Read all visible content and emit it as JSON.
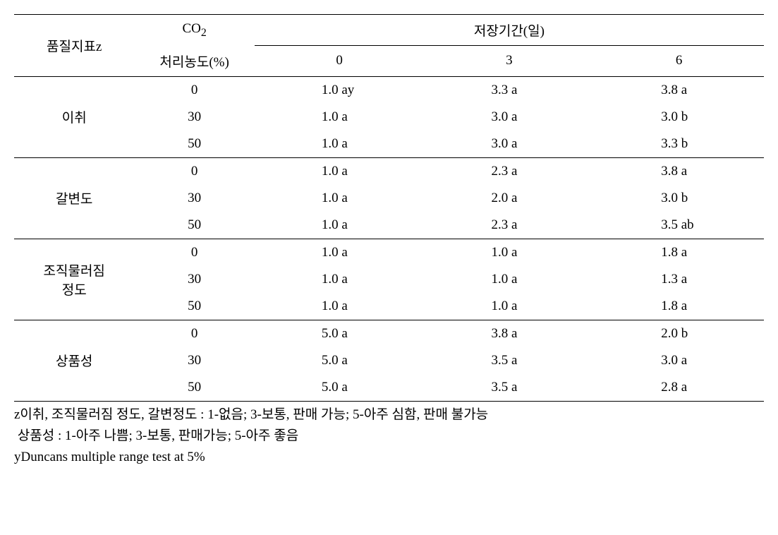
{
  "table": {
    "headers": {
      "quality_indicator": "품질지표z",
      "co2_line1": "CO",
      "co2_sub": "2",
      "co2_line2": "처리농도(%)",
      "storage_period": "저장기간(일)",
      "day0": "0",
      "day3": "3",
      "day6": "6"
    },
    "groups": [
      {
        "label": "이취",
        "rows": [
          {
            "co2": "0",
            "d0": "1.0 ay",
            "d3": "3.3 a",
            "d6": "3.8 a"
          },
          {
            "co2": "30",
            "d0": "1.0 a",
            "d3": "3.0 a",
            "d6": "3.0 b"
          },
          {
            "co2": "50",
            "d0": "1.0 a",
            "d3": "3.0 a",
            "d6": "3.3 b"
          }
        ]
      },
      {
        "label": "갈변도",
        "rows": [
          {
            "co2": "0",
            "d0": "1.0 a",
            "d3": "2.3 a",
            "d6": "3.8 a"
          },
          {
            "co2": "30",
            "d0": "1.0 a",
            "d3": "2.0 a",
            "d6": "3.0 b"
          },
          {
            "co2": "50",
            "d0": "1.0 a",
            "d3": "2.3 a",
            "d6": "3.5 ab"
          }
        ]
      },
      {
        "label_line1": "조직물러짐",
        "label_line2": "정도",
        "rows": [
          {
            "co2": "0",
            "d0": "1.0 a",
            "d3": "1.0 a",
            "d6": "1.8 a"
          },
          {
            "co2": "30",
            "d0": "1.0 a",
            "d3": "1.0 a",
            "d6": "1.3 a"
          },
          {
            "co2": "50",
            "d0": "1.0 a",
            "d3": "1.0 a",
            "d6": "1.8 a"
          }
        ]
      },
      {
        "label": "상품성",
        "rows": [
          {
            "co2": "0",
            "d0": "5.0 a",
            "d3": "3.8 a",
            "d6": "2.0 b"
          },
          {
            "co2": "30",
            "d0": "5.0 a",
            "d3": "3.5 a",
            "d6": "3.0 a"
          },
          {
            "co2": "50",
            "d0": "5.0 a",
            "d3": "3.5 a",
            "d6": "2.8 a"
          }
        ]
      }
    ]
  },
  "footnotes": {
    "line1": "z이취, 조직물러짐 정도, 갈변정도 : 1-없음; 3-보통, 판매 가능; 5-아주 심함, 판매 불가능",
    "line2": " 상품성 : 1-아주 나쁨; 3-보통, 판매가능; 5-아주 좋음",
    "line3": "yDuncans multiple range test at 5%"
  }
}
